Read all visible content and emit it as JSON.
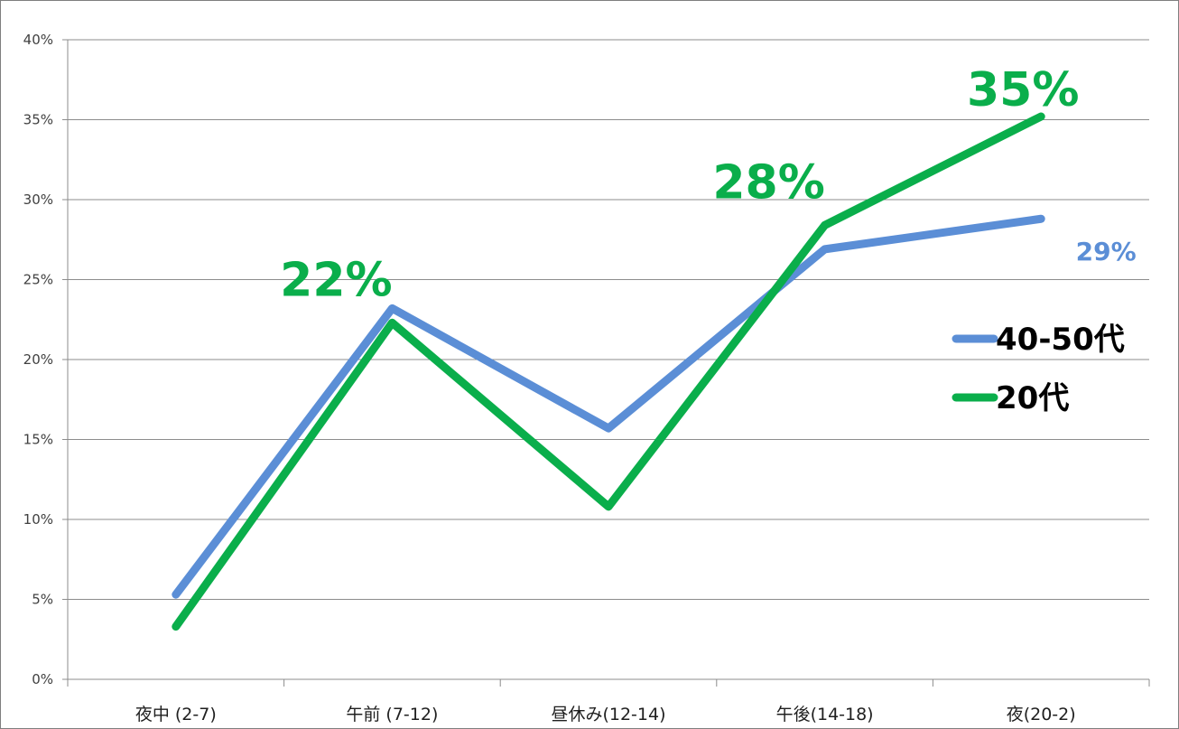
{
  "chart_data": {
    "type": "line",
    "categories": [
      "夜中 (2-7)",
      "午前 (7-12)",
      "昼休み(12-14)",
      "午後(14-18)",
      "夜(20-2)"
    ],
    "y_ticks": [
      "0%",
      "5%",
      "10%",
      "15%",
      "20%",
      "25%",
      "30%",
      "35%",
      "40%"
    ],
    "ylim": [
      0,
      40
    ],
    "grid": true,
    "legend_position": "right",
    "series": [
      {
        "name": "40-50代",
        "values": [
          5.3,
          23.2,
          15.7,
          26.9,
          28.8
        ],
        "color": "#5B8ED6"
      },
      {
        "name": "20代",
        "values": [
          3.3,
          22.3,
          10.8,
          28.4,
          35.2
        ],
        "color": "#0AAE4B"
      }
    ],
    "annotations": [
      {
        "text": "22%",
        "series": 1,
        "index": 1,
        "color": "#0AAE4B",
        "size": "large"
      },
      {
        "text": "28%",
        "series": 1,
        "index": 3,
        "color": "#0AAE4B",
        "size": "large"
      },
      {
        "text": "35%",
        "series": 1,
        "index": 4,
        "color": "#0AAE4B",
        "size": "large"
      },
      {
        "text": "29%",
        "series": 0,
        "index": 4,
        "color": "#5B8ED6",
        "size": "small"
      }
    ]
  }
}
